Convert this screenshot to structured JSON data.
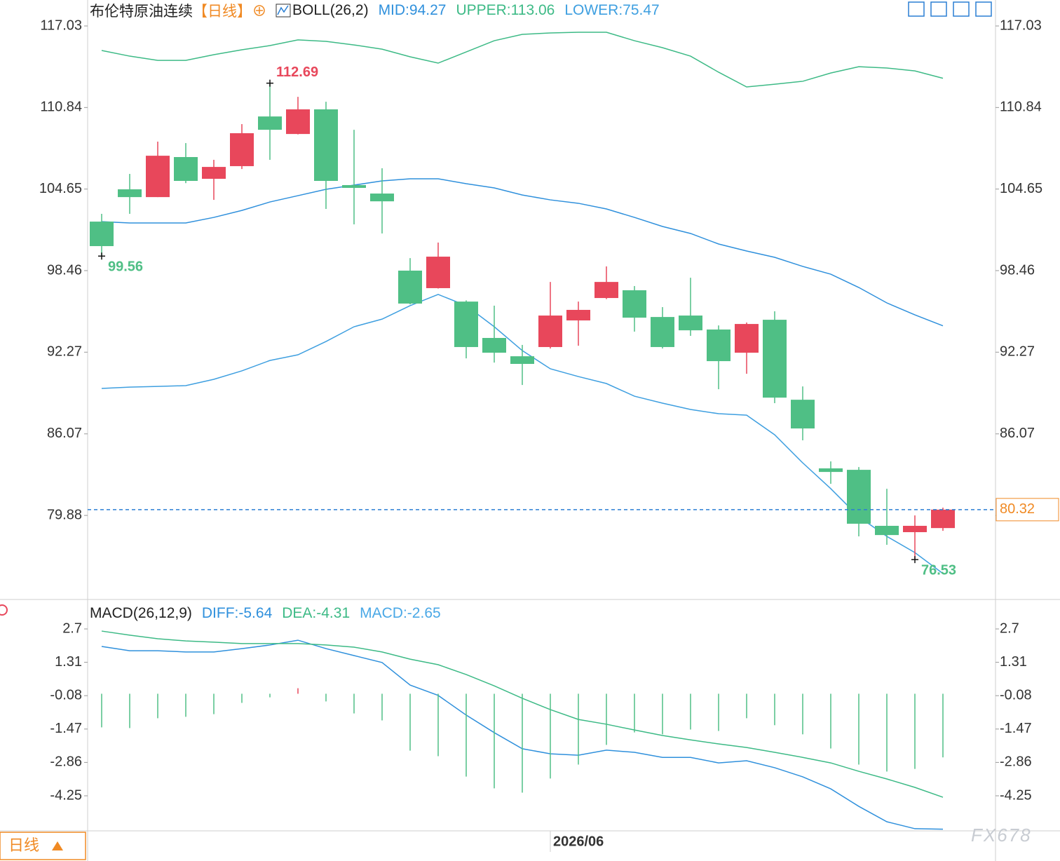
{
  "chart_data": [
    {
      "type": "candlestick",
      "title": "布伦特原油连续",
      "period": "【日线】",
      "indicator": "BOLL(26,2)",
      "categories": [
        null,
        null,
        null,
        null,
        null,
        null,
        null,
        null,
        null,
        null,
        null,
        null,
        null,
        null,
        null,
        null,
        "2026/06",
        null,
        null,
        null,
        null,
        null,
        null,
        null,
        null,
        null,
        null,
        null,
        null,
        null,
        null
      ],
      "open": [
        102.18,
        104.63,
        104.04,
        107.08,
        105.43,
        106.39,
        110.16,
        108.83,
        110.7,
        104.95,
        104.31,
        98.46,
        97.13,
        96.11,
        93.35,
        91.96,
        92.66,
        94.68,
        96.38,
        96.97,
        94.94,
        95.05,
        93.99,
        92.23,
        94.73,
        88.66,
        83.45,
        83.34,
        79.09,
        78.61,
        78.92
      ],
      "high": [
        102.77,
        105.8,
        108.25,
        108.14,
        106.87,
        109.58,
        112.69,
        111.65,
        111.28,
        109.15,
        106.23,
        99.41,
        100.59,
        96.2,
        95.8,
        92.82,
        97.6,
        96.11,
        98.78,
        97.29,
        95.69,
        97.92,
        94.3,
        94.52,
        95.37,
        89.67,
        83.98,
        83.55,
        81.9,
        79.88,
        80.47
      ],
      "low": [
        99.56,
        102.77,
        104.04,
        105.1,
        103.83,
        106.17,
        106.87,
        108.8,
        103.14,
        101.97,
        101.28,
        95.9,
        97.1,
        91.8,
        91.48,
        89.78,
        92.55,
        92.76,
        96.3,
        93.83,
        92.55,
        93.51,
        89.46,
        90.63,
        88.4,
        85.58,
        82.28,
        78.29,
        77.65,
        76.53,
        78.71
      ],
      "close": [
        100.32,
        104.04,
        107.18,
        105.27,
        106.33,
        108.89,
        109.15,
        110.7,
        105.27,
        104.74,
        103.72,
        95.96,
        99.52,
        92.66,
        92.23,
        91.38,
        95.05,
        95.48,
        97.6,
        94.89,
        92.66,
        93.93,
        91.59,
        94.41,
        88.82,
        86.48,
        83.18,
        79.25,
        78.39,
        79.09,
        80.32
      ],
      "up_color": "#e8475b",
      "down_color": "#4fbf85",
      "series": [
        {
          "name": "MID:94.27",
          "color": "#2f90dc",
          "values": [
            102.18,
            102.08,
            102.08,
            102.08,
            102.5,
            103.03,
            103.67,
            104.15,
            104.63,
            104.95,
            105.27,
            105.43,
            105.43,
            105.06,
            104.74,
            104.2,
            103.83,
            103.57,
            103.14,
            102.5,
            101.81,
            101.28,
            100.48,
            99.95,
            99.47,
            98.78,
            98.19,
            97.18,
            96.01,
            95.1,
            94.27
          ]
        },
        {
          "name": "UPPER:113.06",
          "color": "#3dba86",
          "values": [
            115.17,
            114.74,
            114.42,
            114.42,
            114.85,
            115.22,
            115.54,
            115.97,
            115.86,
            115.59,
            115.27,
            114.69,
            114.21,
            115.06,
            115.91,
            116.39,
            116.5,
            116.55,
            116.55,
            115.91,
            115.38,
            114.74,
            113.52,
            112.4,
            112.61,
            112.83,
            113.46,
            113.94,
            113.84,
            113.62,
            113.06
          ]
        },
        {
          "name": "LOWER:75.47",
          "color": "#3e9fe0",
          "values": [
            89.52,
            89.62,
            89.67,
            89.73,
            90.21,
            90.85,
            91.64,
            92.07,
            93.08,
            94.2,
            94.78,
            95.8,
            96.65,
            95.8,
            94.2,
            92.39,
            91.01,
            90.42,
            89.89,
            88.93,
            88.4,
            87.92,
            87.6,
            87.49,
            86.0,
            83.87,
            81.91,
            79.78,
            78.29,
            77.06,
            75.47
          ]
        }
      ],
      "annotations": [
        {
          "index": 6,
          "value": 112.69
        },
        {
          "index": 0,
          "value": 99.56
        },
        {
          "index": 29,
          "value": 76.53
        }
      ],
      "last_price": 80.32,
      "last_price_color": "#f08a24",
      "last_price_line_color": "#2a7fd4",
      "ylim": [
        73.5,
        119.0
      ],
      "yticks": [
        117.03,
        110.84,
        104.65,
        98.46,
        92.27,
        86.07,
        79.88
      ]
    },
    {
      "type": "macd",
      "indicator": "MACD(26,12,9)",
      "series": [
        {
          "name": "DIFF:-5.64",
          "color": "#2f90dc",
          "style": "line",
          "values": [
            1.97,
            1.79,
            1.79,
            1.74,
            1.74,
            1.88,
            2.03,
            2.23,
            1.88,
            1.59,
            1.3,
            0.36,
            -0.07,
            -0.89,
            -1.62,
            -2.29,
            -2.5,
            -2.56,
            -2.35,
            -2.44,
            -2.65,
            -2.65,
            -2.88,
            -2.79,
            -3.08,
            -3.46,
            -3.96,
            -4.69,
            -5.33,
            -5.62,
            -5.64
          ]
        },
        {
          "name": "DEA:-4.31",
          "color": "#3dba86",
          "style": "line",
          "values": [
            2.61,
            2.44,
            2.29,
            2.2,
            2.15,
            2.09,
            2.09,
            2.09,
            2.03,
            1.94,
            1.74,
            1.44,
            1.21,
            0.8,
            0.33,
            -0.19,
            -0.66,
            -1.07,
            -1.27,
            -1.51,
            -1.74,
            -1.92,
            -2.09,
            -2.24,
            -2.44,
            -2.65,
            -2.88,
            -3.23,
            -3.55,
            -3.9,
            -4.31
          ]
        },
        {
          "name": "MACD:-2.65",
          "color": "#4aa8e6",
          "style": "bar",
          "values": [
            -1.4,
            -1.43,
            -1.02,
            -0.96,
            -0.85,
            -0.38,
            -0.15,
            0.23,
            -0.32,
            -0.82,
            -1.11,
            -2.37,
            -2.6,
            -3.45,
            -3.94,
            -4.12,
            -3.53,
            -2.95,
            -2.13,
            -1.61,
            -1.69,
            -1.49,
            -1.55,
            -1.02,
            -1.31,
            -1.69,
            -2.28,
            -2.95,
            -3.24,
            -3.13,
            -2.65
          ]
        }
      ],
      "up_color": "#e8475b",
      "down_color": "#4fbf85",
      "ylim": [
        -5.71,
        3.78
      ],
      "yticks": [
        2.7,
        1.31,
        -0.08,
        -1.47,
        -2.86,
        -4.25
      ]
    }
  ],
  "period_button": "日线",
  "watermark": "FX678"
}
